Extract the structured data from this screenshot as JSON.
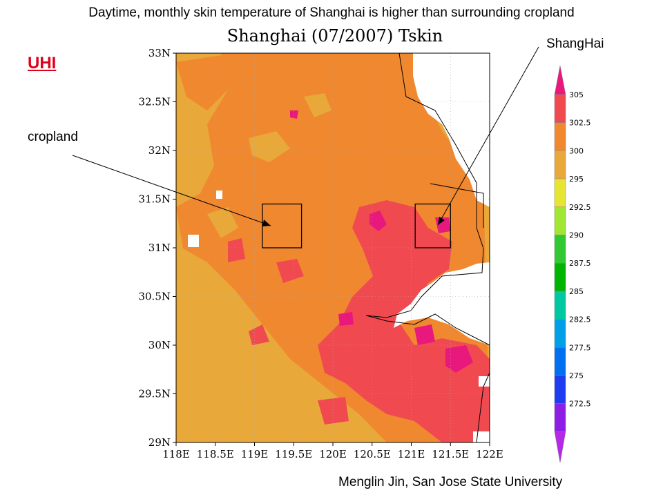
{
  "headline": "Daytime, monthly skin temperature of Shanghai is higher than surrounding cropland",
  "uhi_label": "UHI",
  "cropland_label": "cropland",
  "shanghai_label": "ShangHai",
  "credit": "Menglin Jin, San Jose State University",
  "map": {
    "title": "Shanghai (07/2007) Tskin",
    "lat_ticks": [
      "33N",
      "32.5N",
      "32N",
      "31.5N",
      "31N",
      "30.5N",
      "30N",
      "29.5N",
      "29N"
    ],
    "lon_ticks": [
      "118E",
      "118.5E",
      "119E",
      "119.5E",
      "120E",
      "120.5E",
      "121E",
      "121.5E",
      "122E"
    ],
    "lat_range": [
      29,
      33
    ],
    "lon_range": [
      118,
      122
    ],
    "grid": "dotted gridlines in the unmasked area",
    "boxes": [
      {
        "name": "cropland",
        "lon": [
          119.1,
          119.6
        ],
        "lat": [
          31.0,
          31.45
        ]
      },
      {
        "name": "shanghai",
        "lon": [
          121.05,
          121.5
        ],
        "lat": [
          31.0,
          31.45
        ]
      }
    ],
    "fill_colors": {
      "below_300": "#e8a83a",
      "300_to_302_5": "#f08830",
      "302_5_to_305": "#f04a50",
      "above_305": "#e8187c",
      "missing": "#ffffff"
    }
  },
  "colorbar": {
    "labels": [
      "305",
      "302.5",
      "300",
      "295",
      "292.5",
      "290",
      "287.5",
      "285",
      "282.5",
      "277.5",
      "275",
      "272.5"
    ],
    "colors": [
      "#e8187c",
      "#f04a50",
      "#f08830",
      "#e8a83a",
      "#e6e632",
      "#a0e632",
      "#32c832",
      "#00b400",
      "#00c8a0",
      "#00a0e6",
      "#0070f0",
      "#1e3cf0",
      "#8c1ee6",
      "#b428e6"
    ]
  }
}
